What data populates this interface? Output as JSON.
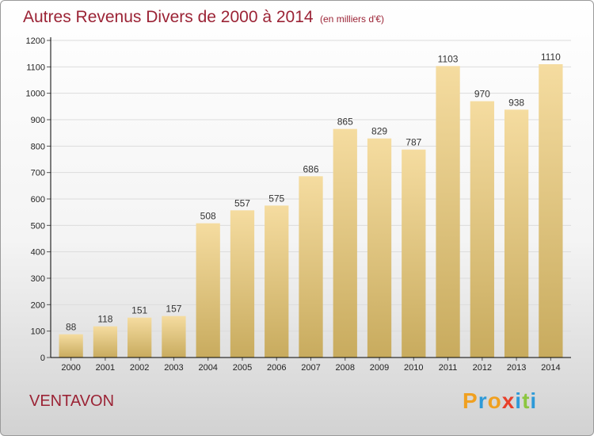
{
  "header": {
    "title": "Autres Revenus Divers de 2000 à 2014",
    "unit": "(en milliers d'€)"
  },
  "footer": {
    "place": "VENTAVON",
    "logo": [
      "P",
      "r",
      "o",
      "x",
      "i",
      "t",
      "i"
    ],
    "logo_colors": [
      "#f0a020",
      "#2e9ad8",
      "#f0a020",
      "#e8402a",
      "#2e9ad8",
      "#8cc63f",
      "#2e9ad8"
    ]
  },
  "colors": {
    "title": "#9b2335",
    "bar_top": "#f5dca0",
    "bar_bottom": "#c8ab5e",
    "grid": "#dcdcdc",
    "axis": "#000000"
  },
  "chart_data": {
    "type": "bar",
    "title": "Autres Revenus Divers de 2000 à 2014",
    "xlabel": "",
    "ylabel": "",
    "categories": [
      "2000",
      "2001",
      "2002",
      "2003",
      "2004",
      "2005",
      "2006",
      "2007",
      "2008",
      "2009",
      "2010",
      "2011",
      "2012",
      "2013",
      "2014"
    ],
    "values": [
      88,
      118,
      151,
      157,
      508,
      557,
      575,
      686,
      865,
      829,
      787,
      1103,
      970,
      938,
      1110
    ],
    "ylim": [
      0,
      1200
    ],
    "yticks": [
      0,
      100,
      200,
      300,
      400,
      500,
      600,
      700,
      800,
      900,
      1000,
      1100,
      1200
    ],
    "grid": true
  }
}
